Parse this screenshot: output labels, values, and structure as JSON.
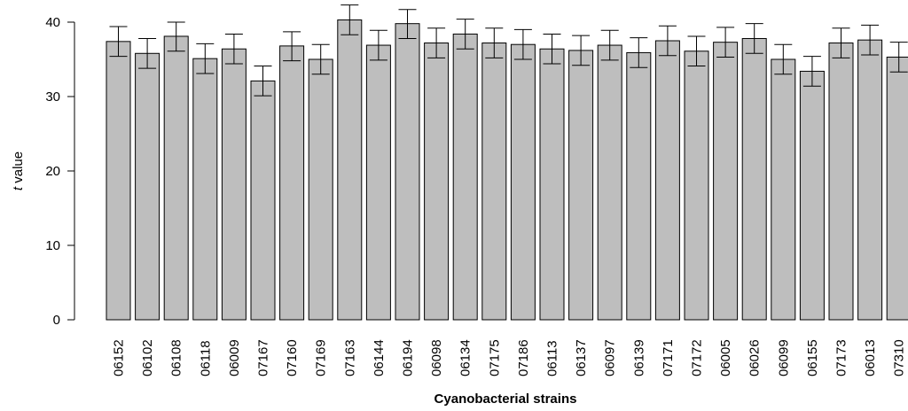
{
  "chart_data": {
    "type": "bar",
    "title": "",
    "xlabel": "Cyanobacterial strains",
    "ylabel": "t value",
    "ylabel_italic_part": "t",
    "ylabel_rest": " value",
    "ylim": [
      0,
      40
    ],
    "yticks": [
      0,
      10,
      20,
      30,
      40
    ],
    "ytick_labels": [
      "0",
      "10",
      "20",
      "30",
      "40"
    ],
    "grid": false,
    "bar_color": "#bebebe",
    "categories": [
      "06152",
      "06102",
      "06108",
      "06118",
      "06009",
      "07167",
      "07160",
      "07169",
      "07163",
      "06144",
      "06194",
      "06098",
      "06134",
      "07175",
      "07186",
      "06113",
      "06137",
      "06097",
      "06139",
      "07171",
      "07172",
      "06005",
      "06026",
      "06099",
      "06155",
      "07173",
      "06013",
      "07310"
    ],
    "values": [
      37.4,
      35.8,
      38.1,
      35.1,
      36.4,
      32.1,
      36.8,
      35.0,
      40.3,
      36.9,
      39.8,
      37.2,
      38.4,
      37.2,
      37.0,
      36.4,
      36.2,
      36.9,
      35.9,
      37.5,
      36.1,
      37.3,
      37.8,
      35.0,
      33.4,
      37.2,
      37.6,
      35.3
    ],
    "error_upper": [
      39.4,
      37.8,
      40.0,
      37.1,
      38.4,
      34.1,
      38.7,
      37.0,
      42.3,
      38.9,
      41.7,
      39.2,
      40.4,
      39.2,
      39.0,
      38.4,
      38.2,
      38.9,
      37.9,
      39.5,
      38.1,
      39.3,
      39.8,
      37.0,
      35.4,
      39.2,
      39.6,
      37.3
    ],
    "error_lower": [
      35.4,
      33.8,
      36.1,
      33.1,
      34.4,
      30.1,
      34.8,
      33.0,
      38.3,
      34.9,
      37.8,
      35.2,
      36.4,
      35.2,
      35.0,
      34.4,
      34.2,
      34.9,
      33.9,
      35.5,
      34.1,
      35.3,
      35.8,
      33.0,
      31.4,
      35.2,
      35.6,
      33.3
    ]
  }
}
